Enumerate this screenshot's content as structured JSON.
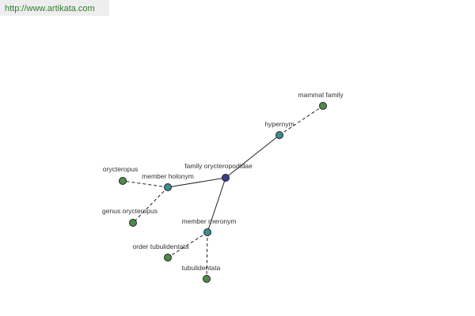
{
  "header": {
    "url": "http://www.artikata.com"
  },
  "nodes": [
    {
      "label": "family orycteropodidae"
    },
    {
      "label": "hypernym"
    },
    {
      "label": "mammal family"
    },
    {
      "label": "member holonym"
    },
    {
      "label": "orycteropus"
    },
    {
      "label": "genus orycteropus"
    },
    {
      "label": "member meronym"
    },
    {
      "label": "order tubulidentata"
    },
    {
      "label": "tubulidentata"
    }
  ]
}
